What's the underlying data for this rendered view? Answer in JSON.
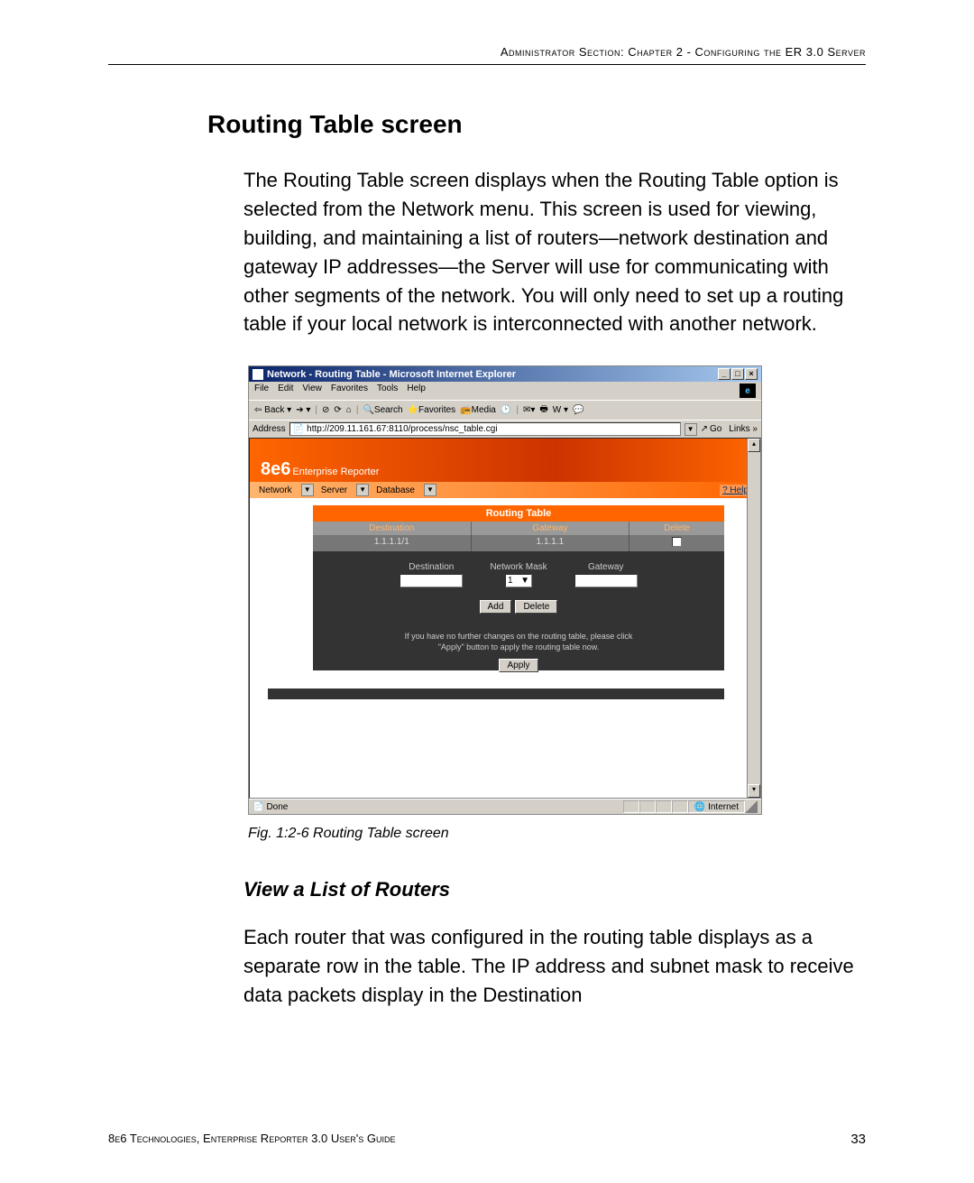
{
  "header": "Administrator Section: Chapter 2 - Configuring the ER 3.0 Server",
  "section_title": "Routing Table screen",
  "intro": "The Routing Table screen displays when the Routing Table option is selected from the Network menu. This screen is used for viewing, building, and maintaining a list of routers—network destination and gateway IP addresses—the Server will use for communicating with other segments of the network. You will only need to set up a routing table if your local network is interconnected with another network.",
  "caption": "Fig. 1:2-6  Routing Table screen",
  "subsection": "View a List of Routers",
  "body2": "Each router that was configured in the routing table displays as a separate row in the table. The IP address and subnet mask to receive data packets display in the Destination",
  "footer_left": "8e6 Technologies, Enterprise Reporter 3.0 User's Guide",
  "footer_page": "33",
  "ie": {
    "title": "Network - Routing Table - Microsoft Internet Explorer",
    "menus": [
      "File",
      "Edit",
      "View",
      "Favorites",
      "Tools",
      "Help"
    ],
    "back": "Back",
    "search": "Search",
    "favorites": "Favorites",
    "media": "Media",
    "address_label": "Address",
    "url": "http://209.11.161.67:8110/process/nsc_table.cgi",
    "go": "Go",
    "links": "Links",
    "status_done": "Done",
    "status_zone": "Internet"
  },
  "app": {
    "brand_bold": "8e6",
    "brand_text": "Enterprise Reporter",
    "help": "? Help",
    "nav": {
      "network": "Network",
      "server": "Server",
      "database": "Database"
    },
    "panel_title": "Routing Table",
    "cols": {
      "dest": "Destination",
      "gw": "Gateway",
      "del": "Delete"
    },
    "row": {
      "dest": "1.1.1.1/1",
      "gw": "1.1.1.1"
    },
    "form": {
      "dest": "Destination",
      "mask": "Network Mask",
      "mask_val": "1",
      "gw": "Gateway"
    },
    "btn_add": "Add",
    "btn_delete": "Delete",
    "msg1": "If you have no further changes on the routing table, please click",
    "msg2": "\"Apply\" button to apply the routing table now.",
    "btn_apply": "Apply"
  }
}
